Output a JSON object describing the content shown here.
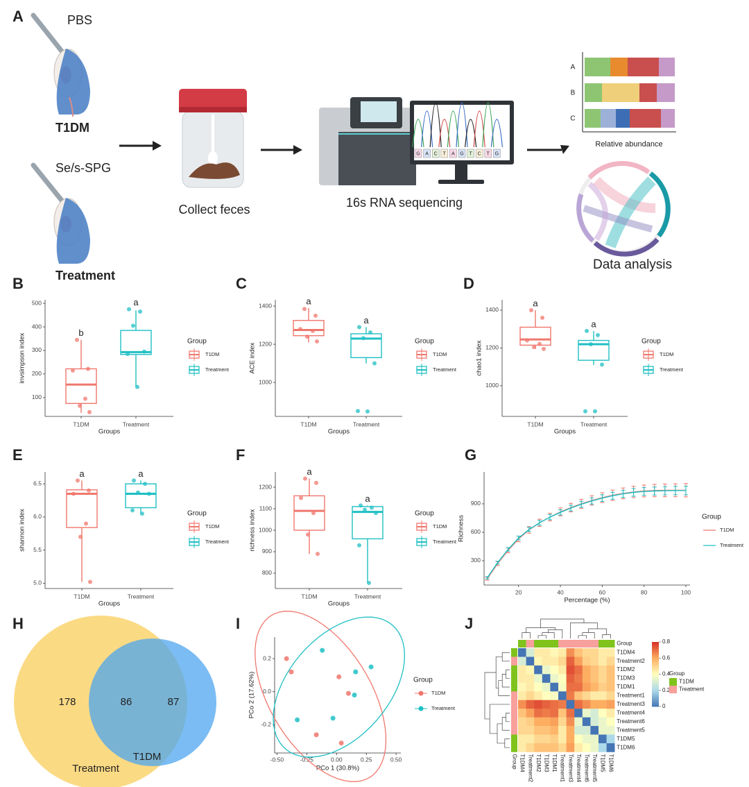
{
  "panel_a": {
    "label": "A",
    "groups": [
      {
        "agent": "PBS",
        "name": "T1DM"
      },
      {
        "agent": "Se/s-SPG",
        "name": "Treatment"
      }
    ],
    "steps": [
      "Collect feces",
      "16s RNA sequencing"
    ],
    "bases": [
      "G",
      "A",
      "C",
      "T",
      "A",
      "G",
      "T",
      "C",
      "T",
      "G"
    ],
    "abundance_title": "Relative abundance",
    "abundance_rows": [
      "A",
      "B",
      "C"
    ],
    "analysis": "Data analysis"
  },
  "chart_data": [
    {
      "label": "B",
      "type": "box",
      "ylabel": "invsimpson index",
      "xlabel": "Groups",
      "categories": [
        "T1DM",
        "Treatment"
      ],
      "ylim": [
        20,
        515
      ],
      "yticks": [
        100,
        200,
        300,
        400,
        500
      ],
      "legend_title": "Group",
      "series": [
        {
          "name": "T1DM",
          "color": "#f0776d",
          "box": {
            "min": 35,
            "q1": 75,
            "median": 155,
            "q3": 222,
            "max": 345
          },
          "points": [
            345,
            222,
            215,
            95,
            65,
            38
          ],
          "letter": "b"
        },
        {
          "name": "Treatment",
          "color": "#1fbfc4",
          "box": {
            "min": 145,
            "q1": 283,
            "median": 293,
            "q3": 385,
            "max": 470
          },
          "points": [
            475,
            465,
            405,
            295,
            285,
            145
          ],
          "letter": "a"
        }
      ]
    },
    {
      "label": "C",
      "type": "box",
      "ylabel": "ACE index",
      "xlabel": "Groups",
      "categories": [
        "T1DM",
        "Treatment"
      ],
      "ylim": [
        822,
        1433
      ],
      "yticks": [
        1000,
        1200,
        1400
      ],
      "legend_title": "Group",
      "series": [
        {
          "name": "T1DM",
          "color": "#f0776d",
          "box": {
            "min": 1210,
            "q1": 1245,
            "median": 1275,
            "q3": 1325,
            "max": 1390
          },
          "points": [
            1385,
            1350,
            1280,
            1270,
            1240,
            1215
          ],
          "letter": "a"
        },
        {
          "name": "Treatment",
          "color": "#1fbfc4",
          "box": {
            "min": 1100,
            "q1": 1130,
            "median": 1230,
            "q3": 1255,
            "max": 1290
          },
          "points": [
            1290,
            1262,
            1232,
            1100,
            850,
            848
          ],
          "letter": "a"
        }
      ]
    },
    {
      "label": "D",
      "type": "box",
      "ylabel": "chao1 index",
      "xlabel": "Groups",
      "categories": [
        "T1DM",
        "Treatment"
      ],
      "ylim": [
        838,
        1455
      ],
      "yticks": [
        1000,
        1200,
        1400
      ],
      "legend_title": "Group",
      "series": [
        {
          "name": "T1DM",
          "color": "#f0776d",
          "box": {
            "min": 1195,
            "q1": 1215,
            "median": 1245,
            "q3": 1310,
            "max": 1400
          },
          "points": [
            1400,
            1360,
            1240,
            1222,
            1205,
            1195
          ],
          "letter": "a"
        },
        {
          "name": "Treatment",
          "color": "#1fbfc4",
          "box": {
            "min": 1110,
            "q1": 1135,
            "median": 1220,
            "q3": 1240,
            "max": 1290
          },
          "points": [
            1290,
            1268,
            1220,
            1112,
            865,
            865
          ],
          "letter": "a"
        }
      ]
    },
    {
      "label": "E",
      "type": "box",
      "ylabel": "shannon index",
      "xlabel": "Groups",
      "categories": [
        "T1DM",
        "Treatment"
      ],
      "ylim": [
        4.92,
        6.68
      ],
      "yticks": [
        {
          "value": 5,
          "label": "5.0"
        },
        5.5,
        {
          "value": 6,
          "label": "6.0"
        },
        6.5
      ],
      "legend_title": "Group",
      "series": [
        {
          "name": "T1DM",
          "color": "#f0776d",
          "box": {
            "min": 5.02,
            "q1": 5.84,
            "median": 6.35,
            "q3": 6.41,
            "max": 6.55
          },
          "points": [
            6.55,
            6.4,
            6.35,
            5.9,
            5.7,
            5.02
          ],
          "letter": "a"
        },
        {
          "name": "Treatment",
          "color": "#1fbfc4",
          "box": {
            "min": 6.05,
            "q1": 6.14,
            "median": 6.35,
            "q3": 6.5,
            "max": 6.55
          },
          "points": [
            6.55,
            6.5,
            6.37,
            6.35,
            6.1,
            6.05
          ],
          "letter": "a"
        }
      ]
    },
    {
      "label": "F",
      "type": "box",
      "ylabel": "richness index",
      "xlabel": "Groups",
      "categories": [
        "T1DM",
        "Treatment"
      ],
      "ylim": [
        729,
        1271
      ],
      "yticks": [
        800,
        900,
        1000,
        1100,
        1200
      ],
      "legend_title": "Group",
      "series": [
        {
          "name": "T1DM",
          "color": "#f0776d",
          "box": {
            "min": 890,
            "q1": 1000,
            "median": 1090,
            "q3": 1160,
            "max": 1240
          },
          "points": [
            1240,
            1220,
            1150,
            1080,
            980,
            890
          ],
          "letter": "a"
        },
        {
          "name": "Treatment",
          "color": "#1fbfc4",
          "box": {
            "min": 755,
            "q1": 960,
            "median": 1085,
            "q3": 1110,
            "max": 1115
          },
          "points": [
            1115,
            1105,
            1095,
            1080,
            930,
            755
          ],
          "letter": "a"
        }
      ]
    },
    {
      "label": "G",
      "type": "line",
      "ylabel": "Richness",
      "xlabel": "Percentage (%)",
      "x": [
        5,
        10,
        15,
        20,
        25,
        30,
        35,
        40,
        45,
        50,
        55,
        60,
        65,
        70,
        75,
        80,
        85,
        90,
        95,
        100
      ],
      "xlim": [
        3.5,
        102
      ],
      "xticks": [
        20,
        40,
        60,
        80,
        100
      ],
      "ylim": [
        44,
        1236
      ],
      "yticks": [
        300,
        600,
        900
      ],
      "legend_title": "Group",
      "series": [
        {
          "name": "T1DM",
          "color": "#f0776d",
          "values": [
            110,
            270,
            410,
            530,
            625,
            700,
            760,
            815,
            860,
            900,
            935,
            965,
            990,
            1010,
            1025,
            1035,
            1040,
            1042,
            1043,
            1043
          ],
          "errors": [
            15,
            20,
            25,
            30,
            35,
            38,
            40,
            42,
            45,
            48,
            50,
            52,
            55,
            57,
            60,
            62,
            65,
            67,
            68,
            70
          ]
        },
        {
          "name": "Treatment",
          "color": "#1fbfc4",
          "values": [
            120,
            280,
            420,
            540,
            630,
            700,
            760,
            810,
            855,
            895,
            930,
            960,
            985,
            1005,
            1020,
            1030,
            1035,
            1038,
            1040,
            1040
          ],
          "errors": [
            12,
            15,
            18,
            20,
            22,
            25,
            27,
            28,
            30,
            32,
            33,
            35,
            36,
            38,
            40,
            41,
            42,
            43,
            44,
            45
          ]
        }
      ]
    },
    {
      "label": "H",
      "type": "venn",
      "sets": [
        {
          "name": "Treatment",
          "color": "#fbd677"
        },
        {
          "name": "T1DM",
          "color": "#4ea5ef"
        }
      ],
      "values": [
        178,
        86,
        87
      ]
    },
    {
      "label": "I",
      "type": "scatter",
      "xlabel": "PCo 1 (30.8%)",
      "ylabel": "PCo 2 (17.62%)",
      "xlim": [
        -0.52,
        0.54
      ],
      "ylim": [
        -0.37,
        0.33
      ],
      "xticks": [
        {
          "value": -0.5,
          "label": "-0.50"
        },
        {
          "value": -0.25,
          "label": "-0.25"
        },
        {
          "value": 0,
          "label": "0.00"
        },
        0.25,
        {
          "value": 0.5,
          "label": "0.50"
        }
      ],
      "yticks": [
        -0.2,
        {
          "value": 0,
          "label": "0.0"
        },
        0.2
      ],
      "legend_title": "Group",
      "series": [
        {
          "name": "T1DM",
          "color": "#f0776d",
          "x": [
            -0.42,
            -0.38,
            0.02,
            0.1,
            -0.17,
            0.04
          ],
          "y": [
            0.2,
            0.12,
            0.09,
            -0.01,
            -0.26,
            -0.31
          ]
        },
        {
          "name": "Treatment",
          "color": "#1fbfc4",
          "x": [
            -0.12,
            0.16,
            0.29,
            0.15,
            -0.03,
            -0.33
          ],
          "y": [
            0.25,
            0.12,
            0.15,
            -0.02,
            -0.16,
            -0.17
          ]
        }
      ]
    },
    {
      "label": "J",
      "type": "heatmap",
      "group_label": "Group",
      "legend_title": "Group",
      "labels": [
        "T1DM4",
        "Treatment2",
        "T1DM2",
        "T1DM3",
        "T1DM1",
        "Treatment1",
        "Treatment3",
        "Treatment4",
        "Treatment6",
        "Treatment5",
        "T1DM5",
        "T1DM6"
      ],
      "groups": [
        "T1DM",
        "Treatment",
        "T1DM",
        "T1DM",
        "T1DM",
        "Treatment",
        "Treatment",
        "Treatment",
        "Treatment",
        "Treatment",
        "T1DM",
        "T1DM"
      ],
      "series": [
        {
          "name": "T1DM",
          "color": "#7fc31c"
        },
        {
          "name": "Treatment",
          "color": "#f7a09c"
        }
      ],
      "colorbar": {
        "lim": [
          0,
          0.8
        ],
        "ticks": [
          0,
          0.2,
          0.4,
          0.6,
          0.8
        ]
      },
      "values": [
        [
          0,
          0.3,
          0.45,
          0.45,
          0.42,
          0.45,
          0.65,
          0.55,
          0.5,
          0.5,
          0.45,
          0.45
        ],
        [
          0.3,
          0,
          0.42,
          0.45,
          0.45,
          0.5,
          0.72,
          0.62,
          0.52,
          0.5,
          0.45,
          0.5
        ],
        [
          0.45,
          0.42,
          0,
          0.35,
          0.4,
          0.45,
          0.75,
          0.7,
          0.6,
          0.55,
          0.5,
          0.55
        ],
        [
          0.45,
          0.45,
          0.35,
          0,
          0.35,
          0.4,
          0.72,
          0.68,
          0.6,
          0.55,
          0.5,
          0.55
        ],
        [
          0.42,
          0.45,
          0.4,
          0.35,
          0,
          0.38,
          0.7,
          0.7,
          0.62,
          0.58,
          0.52,
          0.55
        ],
        [
          0.45,
          0.5,
          0.45,
          0.4,
          0.38,
          0,
          0.68,
          0.55,
          0.5,
          0.45,
          0.45,
          0.5
        ],
        [
          0.65,
          0.72,
          0.75,
          0.72,
          0.7,
          0.68,
          0,
          0.7,
          0.65,
          0.6,
          0.6,
          0.62
        ],
        [
          0.55,
          0.62,
          0.7,
          0.68,
          0.7,
          0.55,
          0.7,
          0,
          0.35,
          0.3,
          0.4,
          0.45
        ],
        [
          0.5,
          0.52,
          0.6,
          0.6,
          0.62,
          0.5,
          0.65,
          0.35,
          0,
          0.3,
          0.35,
          0.4
        ],
        [
          0.5,
          0.5,
          0.55,
          0.55,
          0.58,
          0.45,
          0.6,
          0.3,
          0.3,
          0,
          0.35,
          0.35
        ],
        [
          0.45,
          0.45,
          0.5,
          0.5,
          0.52,
          0.45,
          0.6,
          0.4,
          0.35,
          0.35,
          0,
          0.2
        ],
        [
          0.45,
          0.5,
          0.55,
          0.55,
          0.55,
          0.5,
          0.62,
          0.45,
          0.4,
          0.35,
          0.2,
          0
        ]
      ]
    }
  ]
}
